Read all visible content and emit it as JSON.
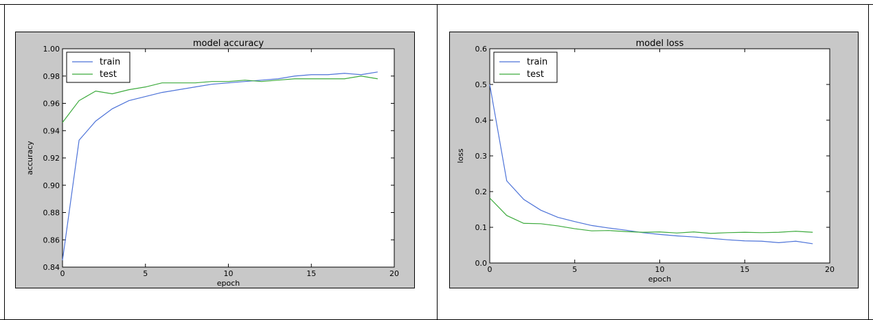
{
  "chart_data": [
    {
      "type": "line",
      "title": "model accuracy",
      "xlabel": "epoch",
      "ylabel": "accuracy",
      "xlim": [
        0,
        20
      ],
      "ylim": [
        0.84,
        1.0
      ],
      "xticks": [
        0,
        5,
        10,
        15,
        20
      ],
      "yticks": [
        0.84,
        0.86,
        0.88,
        0.9,
        0.92,
        0.94,
        0.96,
        0.98,
        1.0
      ],
      "xtick_labels": [
        "0",
        "5",
        "10",
        "15",
        "20"
      ],
      "ytick_labels": [
        "0.84",
        "0.86",
        "0.88",
        "0.90",
        "0.92",
        "0.94",
        "0.96",
        "0.98",
        "1.00"
      ],
      "grid": false,
      "legend": "upper-left",
      "x": [
        0,
        1,
        2,
        3,
        4,
        5,
        6,
        7,
        8,
        9,
        10,
        11,
        12,
        13,
        14,
        15,
        16,
        17,
        18,
        19
      ],
      "series": [
        {
          "name": "train",
          "color": "#4c72d8",
          "values": [
            0.845,
            0.933,
            0.947,
            0.956,
            0.962,
            0.965,
            0.968,
            0.97,
            0.972,
            0.974,
            0.975,
            0.976,
            0.977,
            0.978,
            0.98,
            0.981,
            0.981,
            0.982,
            0.981,
            0.983
          ]
        },
        {
          "name": "test",
          "color": "#3caa3c",
          "values": [
            0.946,
            0.962,
            0.969,
            0.967,
            0.97,
            0.972,
            0.975,
            0.975,
            0.975,
            0.976,
            0.976,
            0.977,
            0.976,
            0.977,
            0.978,
            0.978,
            0.978,
            0.978,
            0.98,
            0.978
          ]
        }
      ]
    },
    {
      "type": "line",
      "title": "model loss",
      "xlabel": "epoch",
      "ylabel": "loss",
      "xlim": [
        0,
        20
      ],
      "ylim": [
        0.0,
        0.6
      ],
      "xticks": [
        0,
        5,
        10,
        15,
        20
      ],
      "yticks": [
        0.0,
        0.1,
        0.2,
        0.3,
        0.4,
        0.5,
        0.6
      ],
      "xtick_labels": [
        "0",
        "5",
        "10",
        "15",
        "20"
      ],
      "ytick_labels": [
        "0.0",
        "0.1",
        "0.2",
        "0.3",
        "0.4",
        "0.5",
        "0.6"
      ],
      "grid": false,
      "legend": "upper-left",
      "x": [
        0,
        1,
        2,
        3,
        4,
        5,
        6,
        7,
        8,
        9,
        10,
        11,
        12,
        13,
        14,
        15,
        16,
        17,
        18,
        19
      ],
      "series": [
        {
          "name": "train",
          "color": "#4c72d8",
          "values": [
            0.5,
            0.23,
            0.178,
            0.148,
            0.128,
            0.116,
            0.105,
            0.098,
            0.092,
            0.085,
            0.08,
            0.076,
            0.073,
            0.069,
            0.065,
            0.062,
            0.061,
            0.057,
            0.061,
            0.054
          ]
        },
        {
          "name": "test",
          "color": "#3caa3c",
          "values": [
            0.182,
            0.133,
            0.111,
            0.11,
            0.104,
            0.096,
            0.09,
            0.091,
            0.088,
            0.086,
            0.087,
            0.084,
            0.087,
            0.083,
            0.085,
            0.086,
            0.085,
            0.086,
            0.089,
            0.086
          ]
        }
      ]
    }
  ]
}
